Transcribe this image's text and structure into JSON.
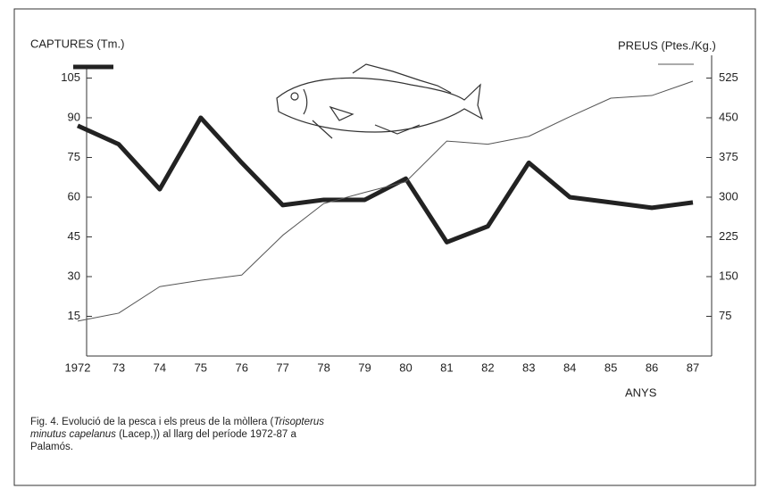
{
  "chart_data": {
    "type": "line",
    "categories": [
      "1972",
      "73",
      "74",
      "75",
      "76",
      "77",
      "78",
      "79",
      "80",
      "81",
      "82",
      "83",
      "84",
      "85",
      "86",
      "87"
    ],
    "series": [
      {
        "name": "CAPTURES (Tm.)",
        "color": "#222222",
        "values": [
          87,
          80,
          63,
          90,
          73,
          57,
          59,
          59,
          67,
          43,
          49,
          73,
          60,
          58,
          56,
          58
        ]
      },
      {
        "name": "PREUS (Ptes./Kg.)",
        "color": "#555555",
        "axis": "y2",
        "values": [
          66,
          81,
          131,
          143,
          153,
          228,
          288,
          309,
          329,
          406,
          400,
          415,
          452,
          487,
          492,
          519
        ]
      }
    ],
    "ylim": [
      0,
      110
    ],
    "yticks": [
      15,
      30,
      45,
      60,
      75,
      90,
      105
    ],
    "y2lim": [
      0,
      550
    ],
    "y2ticks": [
      75,
      150,
      225,
      300,
      375,
      450,
      525
    ],
    "xlabel": "ANYS",
    "caption": [
      "Fig. 4. Evolució de la pesca i els preus de la mòllera (",
      "Trisopterus minutus capelanus",
      " (Lacep,)) al llarg del període 1972-87 a Palamós."
    ]
  }
}
